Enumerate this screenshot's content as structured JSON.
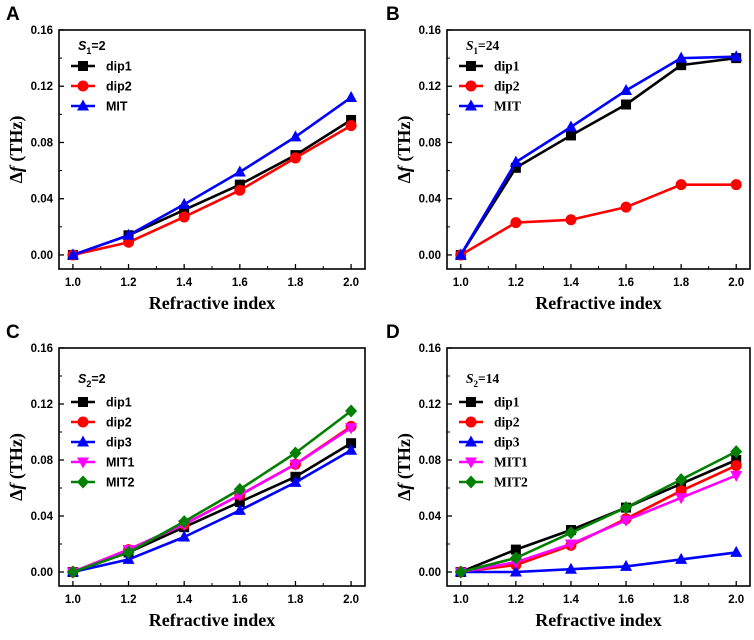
{
  "chart_data": [
    {
      "type": "line",
      "letter": "A",
      "annotation": {
        "var": "S",
        "sub": "1",
        "rest": "=2"
      },
      "legend_style": "sans",
      "xlabel": "Refractive index",
      "ylabel": "Δf (THz)",
      "ylabel_parts": {
        "delta": "Δ",
        "f": "f",
        "unit": " (THz)"
      },
      "x": [
        1.0,
        1.2,
        1.4,
        1.6,
        1.8,
        2.0
      ],
      "xticks": [
        "1.0",
        "1.2",
        "1.4",
        "1.6",
        "1.8",
        "2.0"
      ],
      "yticks": [
        "0.00",
        "0.04",
        "0.08",
        "0.12",
        "0.16"
      ],
      "xlim": [
        0.95,
        2.05
      ],
      "ylim": [
        -0.01,
        0.16
      ],
      "series": [
        {
          "name": "dip1",
          "color": "#000000",
          "marker": "square",
          "values": [
            0.0,
            0.014,
            0.032,
            0.05,
            0.071,
            0.096
          ]
        },
        {
          "name": "dip2",
          "color": "#ff0000",
          "marker": "circle",
          "values": [
            0.0,
            0.009,
            0.027,
            0.046,
            0.069,
            0.092
          ]
        },
        {
          "name": "MIT",
          "color": "#0000ff",
          "marker": "triangle-up",
          "values": [
            0.0,
            0.014,
            0.036,
            0.059,
            0.084,
            0.112
          ]
        }
      ]
    },
    {
      "type": "line",
      "letter": "B",
      "annotation": {
        "var": "S",
        "sub": "1",
        "rest": "=24"
      },
      "legend_style": "serif",
      "xlabel": "Refractive index",
      "ylabel": "Δf (THz)",
      "ylabel_parts": {
        "delta": "Δ",
        "f": "f",
        "unit": " (THz)"
      },
      "x": [
        1.0,
        1.2,
        1.4,
        1.6,
        1.8,
        2.0
      ],
      "xticks": [
        "1.0",
        "1.2",
        "1.4",
        "1.6",
        "1.8",
        "2.0"
      ],
      "yticks": [
        "0.00",
        "0.04",
        "0.08",
        "0.12",
        "0.16"
      ],
      "xlim": [
        0.95,
        2.05
      ],
      "ylim": [
        -0.01,
        0.16
      ],
      "series": [
        {
          "name": "dip1",
          "color": "#000000",
          "marker": "square",
          "values": [
            0.0,
            0.062,
            0.085,
            0.107,
            0.135,
            0.14
          ]
        },
        {
          "name": "dip2",
          "color": "#ff0000",
          "marker": "circle",
          "values": [
            0.0,
            0.023,
            0.025,
            0.034,
            0.05,
            0.05
          ]
        },
        {
          "name": "MIT",
          "color": "#0000ff",
          "marker": "triangle-up",
          "values": [
            0.0,
            0.066,
            0.091,
            0.117,
            0.14,
            0.141
          ]
        }
      ]
    },
    {
      "type": "line",
      "letter": "C",
      "annotation": {
        "var": "S",
        "sub": "2",
        "rest": "=2"
      },
      "legend_style": "sans",
      "xlabel": "Refractive index",
      "ylabel": "Δf (THz)",
      "ylabel_parts": {
        "delta": "Δ",
        "f": "f",
        "unit": " (THz)"
      },
      "x": [
        1.0,
        1.2,
        1.4,
        1.6,
        1.8,
        2.0
      ],
      "xticks": [
        "1.0",
        "1.2",
        "1.4",
        "1.6",
        "1.8",
        "2.0"
      ],
      "yticks": [
        "0.00",
        "0.04",
        "0.08",
        "0.12",
        "0.16"
      ],
      "xlim": [
        0.95,
        2.05
      ],
      "ylim": [
        -0.01,
        0.16
      ],
      "series": [
        {
          "name": "dip1",
          "color": "#000000",
          "marker": "square",
          "values": [
            0.0,
            0.014,
            0.032,
            0.05,
            0.068,
            0.092
          ]
        },
        {
          "name": "dip2",
          "color": "#ff0000",
          "marker": "circle",
          "values": [
            0.0,
            0.016,
            0.034,
            0.055,
            0.077,
            0.104
          ]
        },
        {
          "name": "dip3",
          "color": "#0000ff",
          "marker": "triangle-up",
          "values": [
            0.0,
            0.009,
            0.025,
            0.044,
            0.064,
            0.087
          ]
        },
        {
          "name": "MIT1",
          "color": "#ff00ff",
          "marker": "triangle-down",
          "values": [
            0.0,
            0.016,
            0.034,
            0.055,
            0.077,
            0.103
          ]
        },
        {
          "name": "MIT2",
          "color": "#008000",
          "marker": "diamond",
          "values": [
            0.0,
            0.014,
            0.036,
            0.059,
            0.085,
            0.115
          ]
        }
      ]
    },
    {
      "type": "line",
      "letter": "D",
      "annotation": {
        "var": "S",
        "sub": "2",
        "rest": "=14"
      },
      "legend_style": "serif",
      "xlabel": "Refractive index",
      "ylabel": "Δf (THz)",
      "ylabel_parts": {
        "delta": "Δ",
        "f": "f",
        "unit": " (THz)"
      },
      "x": [
        1.0,
        1.2,
        1.4,
        1.6,
        1.8,
        2.0
      ],
      "xticks": [
        "1.0",
        "1.2",
        "1.4",
        "1.6",
        "1.8",
        "2.0"
      ],
      "yticks": [
        "0.00",
        "0.04",
        "0.08",
        "0.12",
        "0.16"
      ],
      "xlim": [
        0.95,
        2.05
      ],
      "ylim": [
        -0.01,
        0.16
      ],
      "series": [
        {
          "name": "dip1",
          "color": "#000000",
          "marker": "square",
          "values": [
            0.0,
            0.016,
            0.03,
            0.046,
            0.063,
            0.08
          ]
        },
        {
          "name": "dip2",
          "color": "#ff0000",
          "marker": "circle",
          "values": [
            0.0,
            0.005,
            0.019,
            0.038,
            0.058,
            0.076
          ]
        },
        {
          "name": "dip3",
          "color": "#0000ff",
          "marker": "triangle-up",
          "values": [
            0.0,
            0.0,
            0.002,
            0.004,
            0.009,
            0.014
          ]
        },
        {
          "name": "MIT1",
          "color": "#ff00ff",
          "marker": "triangle-down",
          "values": [
            0.0,
            0.007,
            0.02,
            0.037,
            0.053,
            0.069
          ]
        },
        {
          "name": "MIT2",
          "color": "#008000",
          "marker": "diamond",
          "values": [
            0.0,
            0.01,
            0.028,
            0.046,
            0.066,
            0.086
          ]
        }
      ]
    }
  ]
}
